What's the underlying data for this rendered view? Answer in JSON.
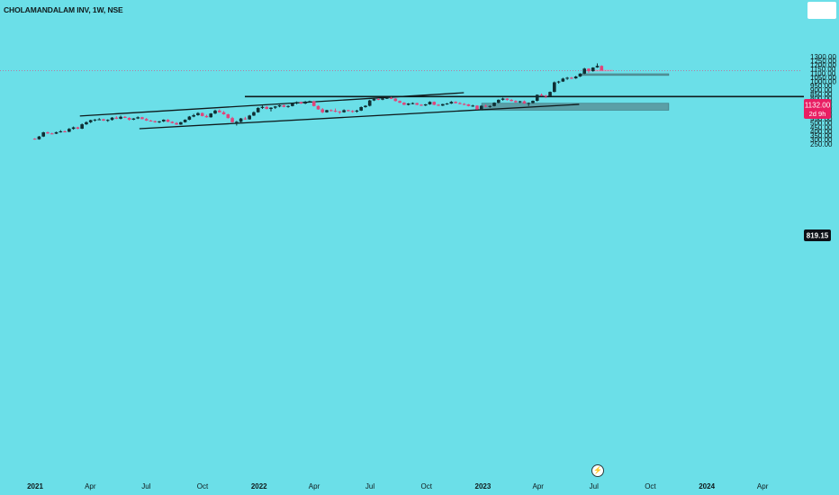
{
  "header": {
    "symbol_title": "CHOLAMANDALAM INV, 1W, NSE"
  },
  "price_badge": {
    "value": "1132.00",
    "countdown": "2d 9h",
    "color": "#e91e63"
  },
  "level_badge": {
    "value": "819.15",
    "color": "#0d1117"
  },
  "colors": {
    "up": "#0f2e33",
    "down": "#e0447a",
    "background": "#6bdfe8",
    "zone": "#5a98a0",
    "zone_pink": "#d98fb0"
  },
  "icons": {
    "bolt": "bolt-icon"
  },
  "chart_data": {
    "type": "candlestick",
    "title": "CHOLAMANDALAM INV, 1W, NSE",
    "y_ticks": [
      250,
      300,
      350,
      400,
      450,
      500,
      550,
      600,
      650,
      700,
      750,
      800,
      850,
      900,
      950,
      1000,
      1050,
      1100,
      1150,
      1200,
      1250,
      1300
    ],
    "y_tick_labels": [
      "250.00",
      "300.00",
      "350.00",
      "400.00",
      "450.00",
      "500.00",
      "550.00",
      "600.00",
      "650.00",
      "700.00",
      "750.00",
      "800.00",
      "850.00",
      "900.00",
      "950.00",
      "1000.00",
      "1050.00",
      "1100.00",
      "1150.00",
      "1200.00",
      "1250.00",
      "1300.00"
    ],
    "x_ticks": [
      {
        "label": "2021",
        "date": "2021-01-01",
        "bold": true
      },
      {
        "label": "Apr",
        "date": "2021-04-01",
        "bold": false
      },
      {
        "label": "Jul",
        "date": "2021-07-01",
        "bold": false
      },
      {
        "label": "Oct",
        "date": "2021-10-01",
        "bold": false
      },
      {
        "label": "2022",
        "date": "2022-01-01",
        "bold": true
      },
      {
        "label": "Apr",
        "date": "2022-04-01",
        "bold": false
      },
      {
        "label": "Jul",
        "date": "2022-07-01",
        "bold": false
      },
      {
        "label": "Oct",
        "date": "2022-10-01",
        "bold": false
      },
      {
        "label": "2023",
        "date": "2023-01-01",
        "bold": true
      },
      {
        "label": "Apr",
        "date": "2023-04-01",
        "bold": false
      },
      {
        "label": "Jul",
        "date": "2023-07-01",
        "bold": false
      },
      {
        "label": "Oct",
        "date": "2023-10-01",
        "bold": false
      },
      {
        "label": "2024",
        "date": "2024-01-01",
        "bold": true
      },
      {
        "label": "Apr",
        "date": "2024-04-01",
        "bold": false
      }
    ],
    "last_price": 1132.0,
    "horizontal_level": 819.15,
    "channel_lines": [
      {
        "name": "upper",
        "from": [
          "2021-03-15",
          585
        ],
        "to": [
          "2022-12-01",
          865
        ]
      },
      {
        "name": "lower",
        "from": [
          "2021-06-20",
          432
        ],
        "to": [
          "2023-06-07",
          725
        ]
      }
    ],
    "zones": [
      {
        "from": "2022-12-30",
        "to": "2023-10-31",
        "low": 655,
        "high": 738
      },
      {
        "from": "2023-06-11",
        "to": "2023-10-31",
        "low": 1073,
        "high": 1093
      },
      {
        "from": "2023-06-26",
        "to": "2023-08-01",
        "low": 1123,
        "high": 1140
      }
    ],
    "candles": [
      [
        "2020-12-28",
        312,
        318,
        300,
        305
      ],
      [
        "2021-01-04",
        305,
        345,
        300,
        338
      ],
      [
        "2021-01-11",
        338,
        395,
        332,
        388
      ],
      [
        "2021-01-18",
        388,
        398,
        370,
        375
      ],
      [
        "2021-01-25",
        375,
        384,
        365,
        372
      ],
      [
        "2021-02-01",
        372,
        396,
        368,
        390
      ],
      [
        "2021-02-08",
        390,
        415,
        385,
        400
      ],
      [
        "2021-02-15",
        400,
        410,
        388,
        395
      ],
      [
        "2021-02-22",
        395,
        440,
        390,
        430
      ],
      [
        "2021-03-01",
        430,
        458,
        420,
        448
      ],
      [
        "2021-03-08",
        448,
        455,
        425,
        432
      ],
      [
        "2021-03-15",
        432,
        495,
        428,
        485
      ],
      [
        "2021-03-22",
        485,
        520,
        478,
        510
      ],
      [
        "2021-03-29",
        510,
        540,
        500,
        535
      ],
      [
        "2021-04-05",
        535,
        548,
        520,
        542
      ],
      [
        "2021-04-12",
        542,
        560,
        535,
        545
      ],
      [
        "2021-04-19",
        545,
        552,
        525,
        530
      ],
      [
        "2021-04-26",
        530,
        545,
        515,
        538
      ],
      [
        "2021-05-03",
        538,
        572,
        530,
        565
      ],
      [
        "2021-05-10",
        565,
        582,
        548,
        552
      ],
      [
        "2021-05-17",
        552,
        590,
        545,
        575
      ],
      [
        "2021-05-24",
        575,
        585,
        560,
        562
      ],
      [
        "2021-05-31",
        562,
        570,
        530,
        540
      ],
      [
        "2021-06-07",
        540,
        560,
        535,
        555
      ],
      [
        "2021-06-14",
        555,
        580,
        548,
        570
      ],
      [
        "2021-06-21",
        570,
        575,
        545,
        548
      ],
      [
        "2021-06-28",
        548,
        562,
        525,
        530
      ],
      [
        "2021-07-05",
        530,
        538,
        518,
        522
      ],
      [
        "2021-07-12",
        522,
        530,
        505,
        510
      ],
      [
        "2021-07-19",
        510,
        525,
        500,
        520
      ],
      [
        "2021-07-26",
        520,
        545,
        512,
        540
      ],
      [
        "2021-08-02",
        540,
        548,
        510,
        515
      ],
      [
        "2021-08-09",
        515,
        522,
        495,
        500
      ],
      [
        "2021-08-16",
        500,
        512,
        478,
        482
      ],
      [
        "2021-08-23",
        482,
        515,
        478,
        510
      ],
      [
        "2021-08-30",
        510,
        545,
        505,
        540
      ],
      [
        "2021-09-06",
        540,
        585,
        535,
        578
      ],
      [
        "2021-09-13",
        578,
        610,
        570,
        595
      ],
      [
        "2021-09-20",
        595,
        630,
        588,
        620
      ],
      [
        "2021-09-27",
        620,
        628,
        580,
        585
      ],
      [
        "2021-10-04",
        585,
        600,
        565,
        570
      ],
      [
        "2021-10-11",
        570,
        620,
        565,
        615
      ],
      [
        "2021-10-18",
        615,
        660,
        608,
        650
      ],
      [
        "2021-10-25",
        650,
        665,
        625,
        630
      ],
      [
        "2021-11-01",
        630,
        645,
        600,
        605
      ],
      [
        "2021-11-08",
        605,
        612,
        555,
        560
      ],
      [
        "2021-11-15",
        560,
        575,
        505,
        510
      ],
      [
        "2021-11-22",
        510,
        525,
        470,
        515
      ],
      [
        "2021-11-29",
        515,
        562,
        508,
        555
      ],
      [
        "2021-12-06",
        555,
        575,
        540,
        545
      ],
      [
        "2021-12-13",
        545,
        598,
        540,
        590
      ],
      [
        "2021-12-20",
        590,
        640,
        585,
        630
      ],
      [
        "2021-12-27",
        630,
        690,
        625,
        682
      ],
      [
        "2022-01-03",
        682,
        710,
        670,
        695
      ],
      [
        "2022-01-10",
        695,
        705,
        665,
        670
      ],
      [
        "2022-01-17",
        670,
        690,
        640,
        685
      ],
      [
        "2022-01-24",
        685,
        705,
        670,
        700
      ],
      [
        "2022-01-31",
        700,
        720,
        690,
        715
      ],
      [
        "2022-02-07",
        715,
        722,
        690,
        695
      ],
      [
        "2022-02-14",
        695,
        712,
        685,
        705
      ],
      [
        "2022-02-21",
        705,
        745,
        700,
        738
      ],
      [
        "2022-02-28",
        738,
        760,
        725,
        752
      ],
      [
        "2022-03-07",
        752,
        758,
        730,
        735
      ],
      [
        "2022-03-14",
        735,
        765,
        728,
        758
      ],
      [
        "2022-03-21",
        758,
        770,
        745,
        762
      ],
      [
        "2022-03-28",
        762,
        770,
        700,
        705
      ],
      [
        "2022-04-04",
        705,
        712,
        660,
        665
      ],
      [
        "2022-04-11",
        665,
        680,
        620,
        630
      ],
      [
        "2022-04-18",
        630,
        660,
        625,
        655
      ],
      [
        "2022-04-25",
        655,
        665,
        640,
        648
      ],
      [
        "2022-05-02",
        648,
        675,
        630,
        640
      ],
      [
        "2022-05-09",
        640,
        645,
        610,
        630
      ],
      [
        "2022-05-16",
        630,
        665,
        625,
        655
      ],
      [
        "2022-05-23",
        655,
        660,
        640,
        645
      ],
      [
        "2022-05-30",
        645,
        655,
        625,
        638
      ],
      [
        "2022-06-06",
        638,
        660,
        625,
        650
      ],
      [
        "2022-06-13",
        650,
        700,
        645,
        692
      ],
      [
        "2022-06-20",
        692,
        715,
        685,
        708
      ],
      [
        "2022-06-27",
        708,
        780,
        700,
        772
      ],
      [
        "2022-07-04",
        772,
        795,
        765,
        790
      ],
      [
        "2022-07-11",
        790,
        800,
        775,
        782
      ],
      [
        "2022-07-18",
        782,
        805,
        775,
        798
      ],
      [
        "2022-07-25",
        798,
        810,
        790,
        803
      ],
      [
        "2022-08-01",
        803,
        815,
        790,
        795
      ],
      [
        "2022-08-08",
        795,
        800,
        760,
        765
      ],
      [
        "2022-08-15",
        765,
        772,
        740,
        745
      ],
      [
        "2022-08-22",
        745,
        752,
        715,
        720
      ],
      [
        "2022-08-29",
        720,
        740,
        712,
        735
      ],
      [
        "2022-09-05",
        735,
        748,
        725,
        740
      ],
      [
        "2022-09-12",
        740,
        745,
        715,
        720
      ],
      [
        "2022-09-19",
        720,
        728,
        705,
        712
      ],
      [
        "2022-09-26",
        712,
        730,
        705,
        725
      ],
      [
        "2022-10-03",
        725,
        762,
        720,
        755
      ],
      [
        "2022-10-10",
        755,
        760,
        715,
        720
      ],
      [
        "2022-10-17",
        720,
        728,
        705,
        710
      ],
      [
        "2022-10-24",
        710,
        732,
        705,
        728
      ],
      [
        "2022-10-31",
        728,
        742,
        720,
        735
      ],
      [
        "2022-11-07",
        735,
        765,
        730,
        755
      ],
      [
        "2022-11-14",
        755,
        762,
        735,
        740
      ],
      [
        "2022-11-21",
        740,
        752,
        725,
        730
      ],
      [
        "2022-11-28",
        730,
        740,
        715,
        725
      ],
      [
        "2022-12-05",
        725,
        730,
        700,
        705
      ],
      [
        "2022-12-12",
        705,
        720,
        695,
        710
      ],
      [
        "2022-12-19",
        710,
        715,
        660,
        665
      ],
      [
        "2022-12-26",
        665,
        712,
        660,
        708
      ],
      [
        "2023-01-02",
        708,
        722,
        690,
        700
      ],
      [
        "2023-01-09",
        700,
        712,
        685,
        705
      ],
      [
        "2023-01-16",
        705,
        750,
        700,
        745
      ],
      [
        "2023-01-23",
        745,
        785,
        740,
        780
      ],
      [
        "2023-01-30",
        780,
        805,
        770,
        795
      ],
      [
        "2023-02-06",
        795,
        800,
        770,
        778
      ],
      [
        "2023-02-13",
        778,
        790,
        760,
        765
      ],
      [
        "2023-02-20",
        765,
        775,
        745,
        750
      ],
      [
        "2023-02-27",
        750,
        768,
        742,
        762
      ],
      [
        "2023-03-06",
        762,
        772,
        730,
        738
      ],
      [
        "2023-03-13",
        738,
        748,
        705,
        742
      ],
      [
        "2023-03-20",
        742,
        772,
        735,
        768
      ],
      [
        "2023-03-27",
        768,
        845,
        760,
        840
      ],
      [
        "2023-04-03",
        840,
        855,
        825,
        830
      ],
      [
        "2023-04-10",
        830,
        840,
        800,
        825
      ],
      [
        "2023-04-17",
        825,
        880,
        820,
        875
      ],
      [
        "2023-04-24",
        875,
        1000,
        870,
        990
      ],
      [
        "2023-05-01",
        990,
        1008,
        975,
        1000
      ],
      [
        "2023-05-08",
        1000,
        1045,
        995,
        1035
      ],
      [
        "2023-05-15",
        1035,
        1055,
        1020,
        1045
      ],
      [
        "2023-05-22",
        1045,
        1055,
        1030,
        1038
      ],
      [
        "2023-05-29",
        1038,
        1068,
        1032,
        1060
      ],
      [
        "2023-06-05",
        1060,
        1100,
        1055,
        1095
      ],
      [
        "2023-06-12",
        1095,
        1165,
        1088,
        1155
      ],
      [
        "2023-06-19",
        1155,
        1160,
        1105,
        1125
      ],
      [
        "2023-06-26",
        1125,
        1172,
        1118,
        1168
      ],
      [
        "2023-07-03",
        1170,
        1218,
        1165,
        1188
      ],
      [
        "2023-07-10",
        1188,
        1195,
        1130,
        1132
      ]
    ]
  }
}
